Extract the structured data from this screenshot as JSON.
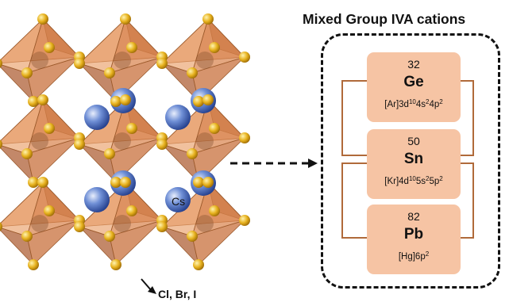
{
  "panel": {
    "title": "Mixed Group IVA cations"
  },
  "elements": [
    {
      "atomic_number": "32",
      "symbol": "Ge",
      "config": [
        {
          "t": "[Ar]3d",
          "sup": ""
        },
        {
          "t": "",
          "sup": "10"
        },
        {
          "t": "4s",
          "sup": ""
        },
        {
          "t": "",
          "sup": "2"
        },
        {
          "t": "4p",
          "sup": ""
        },
        {
          "t": "",
          "sup": "2"
        }
      ]
    },
    {
      "atomic_number": "50",
      "symbol": "Sn",
      "config": [
        {
          "t": "[Kr]4d",
          "sup": ""
        },
        {
          "t": "",
          "sup": "10"
        },
        {
          "t": "5s",
          "sup": ""
        },
        {
          "t": "",
          "sup": "2"
        },
        {
          "t": "5p",
          "sup": ""
        },
        {
          "t": "",
          "sup": "2"
        }
      ]
    },
    {
      "atomic_number": "82",
      "symbol": "Pb",
      "config": [
        {
          "t": "[Hg]6p",
          "sup": ""
        },
        {
          "t": "",
          "sup": "2"
        }
      ]
    }
  ],
  "labels": {
    "a_site": "Cs",
    "halide": "Cl, Br, I"
  },
  "colors": {
    "octahedron": "#d9824a",
    "octahedron_dark": "#a9552a",
    "halide_atom": "#e7b21e",
    "cs_atom": "#3f5fae",
    "element_box": "#f6c4a4",
    "bracket": "#b06a3a"
  }
}
